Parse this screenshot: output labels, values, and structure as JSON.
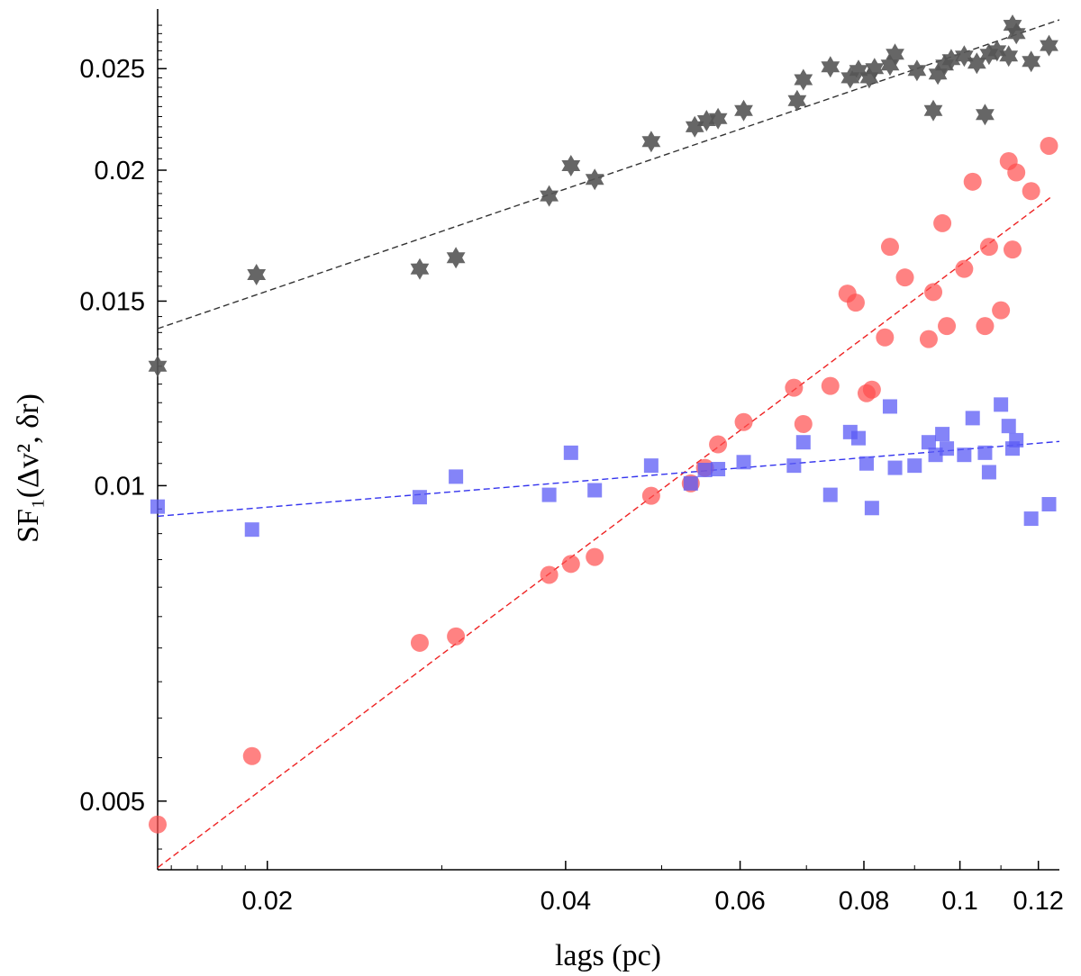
{
  "chart_data": {
    "type": "scatter",
    "xscale": "log",
    "yscale": "log",
    "xlabel": "lags (pc)",
    "ylabel": "SF₁(Δv², δr)",
    "xlim": [
      0.0155,
      0.126
    ],
    "ylim": [
      0.0043,
      0.0285
    ],
    "grid": false,
    "legend": "none",
    "x_ticks": [
      0.02,
      0.04,
      0.06,
      0.08,
      0.1,
      0.12
    ],
    "x_tick_labels": [
      "0.02",
      "0.04",
      "0.06",
      "0.08",
      "0.1",
      "0.12"
    ],
    "y_ticks": [
      0.005,
      0.01,
      0.015,
      0.02,
      0.025
    ],
    "y_tick_labels": [
      "0.005",
      "0.01",
      "0.015",
      "0.02",
      "0.025"
    ],
    "series": [
      {
        "marker": "star",
        "color": "#555555",
        "points": [
          [
            0.0155,
            0.013
          ],
          [
            0.0195,
            0.0159
          ],
          [
            0.0285,
            0.0161
          ],
          [
            0.031,
            0.0165
          ],
          [
            0.0385,
            0.0189
          ],
          [
            0.0405,
            0.0202
          ],
          [
            0.0428,
            0.0196
          ],
          [
            0.0488,
            0.0213
          ],
          [
            0.054,
            0.022
          ],
          [
            0.0555,
            0.0223
          ],
          [
            0.057,
            0.0224
          ],
          [
            0.0605,
            0.0228
          ],
          [
            0.0685,
            0.0233
          ],
          [
            0.0695,
            0.0244
          ],
          [
            0.074,
            0.0251
          ],
          [
            0.0775,
            0.0245
          ],
          [
            0.079,
            0.0249
          ],
          [
            0.081,
            0.0245
          ],
          [
            0.082,
            0.025
          ],
          [
            0.085,
            0.0252
          ],
          [
            0.086,
            0.0258
          ],
          [
            0.0905,
            0.0249
          ],
          [
            0.094,
            0.0228
          ],
          [
            0.095,
            0.0247
          ],
          [
            0.0965,
            0.0252
          ],
          [
            0.098,
            0.0255
          ],
          [
            0.101,
            0.0257
          ],
          [
            0.104,
            0.0253
          ],
          [
            0.106,
            0.0226
          ],
          [
            0.107,
            0.0258
          ],
          [
            0.109,
            0.026
          ],
          [
            0.112,
            0.0257
          ],
          [
            0.113,
            0.0275
          ],
          [
            0.114,
            0.027
          ],
          [
            0.118,
            0.0254
          ],
          [
            0.123,
            0.0263
          ]
        ],
        "fit": [
          [
            0.0155,
            0.01412
          ],
          [
            0.126,
            0.02783
          ]
        ]
      },
      {
        "marker": "circle",
        "color": "#ff4d4d",
        "points": [
          [
            0.0155,
            0.00475
          ],
          [
            0.0193,
            0.00552
          ],
          [
            0.0285,
            0.00708
          ],
          [
            0.031,
            0.00718
          ],
          [
            0.0385,
            0.00822
          ],
          [
            0.0405,
            0.00842
          ],
          [
            0.0428,
            0.00855
          ],
          [
            0.0488,
            0.00978
          ],
          [
            0.0535,
            0.01005
          ],
          [
            0.0553,
            0.0104
          ],
          [
            0.057,
            0.01095
          ],
          [
            0.0605,
            0.0115
          ],
          [
            0.068,
            0.0124
          ],
          [
            0.0695,
            0.01145
          ],
          [
            0.074,
            0.01245
          ],
          [
            0.077,
            0.01525
          ],
          [
            0.0785,
            0.01495
          ],
          [
            0.0805,
            0.01225
          ],
          [
            0.0815,
            0.01235
          ],
          [
            0.084,
            0.01385
          ],
          [
            0.085,
            0.0169
          ],
          [
            0.088,
            0.0158
          ],
          [
            0.093,
            0.0138
          ],
          [
            0.094,
            0.0153
          ],
          [
            0.096,
            0.0178
          ],
          [
            0.097,
            0.0142
          ],
          [
            0.101,
            0.0161
          ],
          [
            0.103,
            0.0195
          ],
          [
            0.106,
            0.0142
          ],
          [
            0.107,
            0.0169
          ],
          [
            0.11,
            0.0147
          ],
          [
            0.112,
            0.0204
          ],
          [
            0.113,
            0.0168
          ],
          [
            0.114,
            0.0199
          ],
          [
            0.118,
            0.0191
          ],
          [
            0.123,
            0.0211
          ]
        ],
        "fit": [
          [
            0.0155,
            0.00432
          ],
          [
            0.124,
            0.0189
          ]
        ]
      },
      {
        "marker": "square",
        "color": "#5b5bf5",
        "points": [
          [
            0.0155,
            0.00955
          ],
          [
            0.0193,
            0.00908
          ],
          [
            0.0285,
            0.00975
          ],
          [
            0.031,
            0.0102
          ],
          [
            0.0385,
            0.0098
          ],
          [
            0.0405,
            0.01075
          ],
          [
            0.0428,
            0.0099
          ],
          [
            0.0488,
            0.01045
          ],
          [
            0.0535,
            0.01005
          ],
          [
            0.0553,
            0.01035
          ],
          [
            0.057,
            0.01037
          ],
          [
            0.0605,
            0.01053
          ],
          [
            0.068,
            0.01045
          ],
          [
            0.0695,
            0.011
          ],
          [
            0.074,
            0.0098
          ],
          [
            0.0775,
            0.01125
          ],
          [
            0.079,
            0.0111
          ],
          [
            0.0805,
            0.0105
          ],
          [
            0.0815,
            0.00952
          ],
          [
            0.085,
            0.0119
          ],
          [
            0.086,
            0.0104
          ],
          [
            0.09,
            0.01045
          ],
          [
            0.093,
            0.011
          ],
          [
            0.0945,
            0.0107
          ],
          [
            0.096,
            0.0112
          ],
          [
            0.097,
            0.01085
          ],
          [
            0.101,
            0.0107
          ],
          [
            0.103,
            0.0116
          ],
          [
            0.106,
            0.01075
          ],
          [
            0.107,
            0.0103
          ],
          [
            0.11,
            0.01195
          ],
          [
            0.112,
            0.0114
          ],
          [
            0.113,
            0.01085
          ],
          [
            0.114,
            0.01105
          ],
          [
            0.118,
            0.0093
          ],
          [
            0.123,
            0.0096
          ]
        ],
        "fit": [
          [
            0.0155,
            0.00935
          ],
          [
            0.126,
            0.01102
          ]
        ]
      }
    ]
  }
}
